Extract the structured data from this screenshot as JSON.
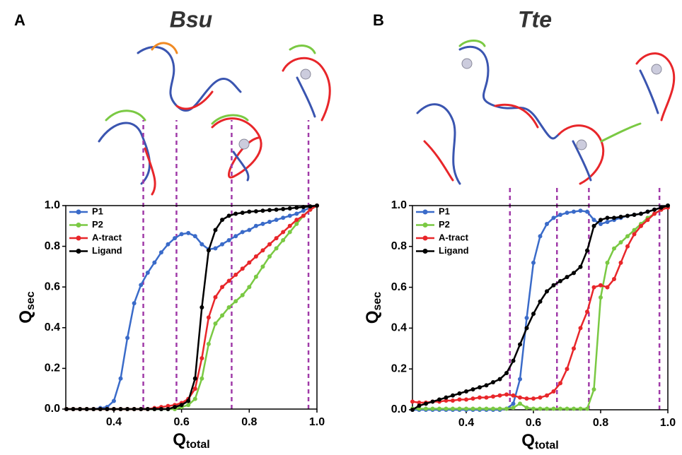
{
  "chart_data": [
    {
      "type": "line",
      "panel": "A",
      "title": "Bsu",
      "xlabel": "Q",
      "xlabel_sub": "total",
      "ylabel": "Q",
      "ylabel_sub": "sec",
      "xlim": [
        0.258,
        1.0
      ],
      "ylim": [
        0,
        1.0
      ],
      "xticks": [
        0.4,
        0.6,
        0.8,
        {
          "value": 1,
          "label": "1.0"
        }
      ],
      "yticks": [
        {
          "value": 0,
          "label": "0.0"
        },
        0.2,
        0.4,
        0.6,
        0.8,
        {
          "value": 1,
          "label": "1.0"
        }
      ],
      "legend": "upper left",
      "marker_color": "#a03aa8",
      "markers": [
        0.487,
        0.585,
        0.748,
        0.975
      ],
      "x": [
        0.26,
        0.28,
        0.3,
        0.32,
        0.34,
        0.36,
        0.38,
        0.4,
        0.42,
        0.44,
        0.46,
        0.48,
        0.5,
        0.52,
        0.54,
        0.56,
        0.58,
        0.6,
        0.62,
        0.64,
        0.66,
        0.68,
        0.7,
        0.72,
        0.74,
        0.76,
        0.78,
        0.8,
        0.82,
        0.84,
        0.86,
        0.88,
        0.9,
        0.92,
        0.94,
        0.96,
        0.98,
        1.0
      ],
      "series": [
        {
          "name": "P1",
          "color": "#3a6bc9",
          "values": [
            0,
            0,
            0,
            0,
            0,
            0.005,
            0.01,
            0.04,
            0.15,
            0.35,
            0.52,
            0.61,
            0.67,
            0.72,
            0.77,
            0.81,
            0.84,
            0.86,
            0.865,
            0.85,
            0.81,
            0.785,
            0.79,
            0.81,
            0.83,
            0.85,
            0.87,
            0.88,
            0.9,
            0.91,
            0.92,
            0.93,
            0.94,
            0.95,
            0.96,
            0.975,
            0.99,
            1.0
          ]
        },
        {
          "name": "P2",
          "color": "#7ac943",
          "values": [
            0,
            0,
            0,
            0,
            0,
            0,
            0,
            0,
            0,
            0,
            0,
            0,
            0,
            0,
            0,
            0,
            0,
            0.01,
            0.02,
            0.05,
            0.15,
            0.32,
            0.42,
            0.46,
            0.5,
            0.53,
            0.56,
            0.6,
            0.65,
            0.7,
            0.75,
            0.79,
            0.83,
            0.87,
            0.91,
            0.95,
            0.98,
            1.0
          ]
        },
        {
          "name": "A-tract",
          "color": "#e8262a",
          "values": [
            0,
            0,
            0,
            0,
            0,
            0,
            0,
            0,
            0,
            0,
            0,
            0,
            0,
            0.005,
            0.01,
            0.015,
            0.02,
            0.03,
            0.05,
            0.1,
            0.25,
            0.45,
            0.55,
            0.6,
            0.63,
            0.66,
            0.69,
            0.72,
            0.75,
            0.78,
            0.81,
            0.84,
            0.87,
            0.9,
            0.93,
            0.95,
            0.98,
            1.0
          ]
        },
        {
          "name": "Ligand",
          "color": "#000000",
          "values": [
            0,
            0,
            0,
            0,
            0,
            0,
            0,
            0,
            0,
            0,
            0,
            0,
            0,
            0,
            0,
            0,
            0.01,
            0.02,
            0.04,
            0.15,
            0.5,
            0.78,
            0.88,
            0.93,
            0.95,
            0.96,
            0.965,
            0.97,
            0.972,
            0.975,
            0.978,
            0.98,
            0.983,
            0.986,
            0.99,
            0.993,
            0.996,
            1.0
          ]
        }
      ]
    },
    {
      "type": "line",
      "panel": "B",
      "title": "Tte",
      "xlabel": "Q",
      "xlabel_sub": "total",
      "ylabel": "Q",
      "ylabel_sub": "sec",
      "xlim": [
        0.24,
        1.0
      ],
      "ylim": [
        0,
        1.0
      ],
      "xticks": [
        0.4,
        0.6,
        0.8,
        {
          "value": 1,
          "label": "1.0"
        }
      ],
      "yticks": [
        {
          "value": 0,
          "label": "0.0"
        },
        0.2,
        0.4,
        0.6,
        0.8,
        {
          "value": 1,
          "label": "1.0"
        }
      ],
      "legend": "upper left",
      "marker_color": "#a03aa8",
      "markers": [
        0.53,
        0.67,
        0.765,
        0.975
      ],
      "x": [
        0.24,
        0.26,
        0.28,
        0.3,
        0.32,
        0.34,
        0.36,
        0.38,
        0.4,
        0.42,
        0.44,
        0.46,
        0.48,
        0.5,
        0.52,
        0.54,
        0.56,
        0.58,
        0.6,
        0.62,
        0.64,
        0.66,
        0.68,
        0.7,
        0.72,
        0.74,
        0.76,
        0.78,
        0.8,
        0.82,
        0.84,
        0.86,
        0.88,
        0.9,
        0.92,
        0.94,
        0.96,
        0.98,
        1.0
      ],
      "series": [
        {
          "name": "P1",
          "color": "#3a6bc9",
          "values": [
            0,
            0,
            0,
            0,
            0,
            0,
            0,
            0,
            0,
            0,
            0,
            0,
            0,
            0,
            0.005,
            0.03,
            0.15,
            0.45,
            0.72,
            0.85,
            0.91,
            0.94,
            0.955,
            0.965,
            0.97,
            0.975,
            0.97,
            0.93,
            0.91,
            0.92,
            0.93,
            0.94,
            0.95,
            0.955,
            0.96,
            0.97,
            0.98,
            0.99,
            1.0
          ]
        },
        {
          "name": "P2",
          "color": "#7ac943",
          "values": [
            0.005,
            0.005,
            0.005,
            0.005,
            0.005,
            0.005,
            0.005,
            0.005,
            0.005,
            0.005,
            0.005,
            0.005,
            0.005,
            0.005,
            0.005,
            0.01,
            0.03,
            0.01,
            0.005,
            0.005,
            0.005,
            0.005,
            0.005,
            0.005,
            0.005,
            0.005,
            0.005,
            0.1,
            0.55,
            0.72,
            0.79,
            0.82,
            0.85,
            0.88,
            0.91,
            0.94,
            0.96,
            0.98,
            1.0
          ]
        },
        {
          "name": "A-tract",
          "color": "#e8262a",
          "values": [
            0.04,
            0.035,
            0.035,
            0.04,
            0.04,
            0.045,
            0.045,
            0.05,
            0.05,
            0.055,
            0.06,
            0.06,
            0.065,
            0.07,
            0.075,
            0.07,
            0.06,
            0.055,
            0.055,
            0.06,
            0.07,
            0.09,
            0.13,
            0.2,
            0.3,
            0.4,
            0.48,
            0.6,
            0.61,
            0.6,
            0.64,
            0.72,
            0.8,
            0.86,
            0.9,
            0.93,
            0.96,
            0.98,
            0.99
          ]
        },
        {
          "name": "Ligand",
          "color": "#000000",
          "values": [
            0,
            0.02,
            0.03,
            0.04,
            0.05,
            0.06,
            0.07,
            0.08,
            0.09,
            0.1,
            0.11,
            0.12,
            0.135,
            0.15,
            0.18,
            0.24,
            0.32,
            0.4,
            0.47,
            0.53,
            0.58,
            0.61,
            0.63,
            0.65,
            0.67,
            0.7,
            0.78,
            0.9,
            0.93,
            0.94,
            0.94,
            0.945,
            0.95,
            0.955,
            0.96,
            0.97,
            0.98,
            0.99,
            1.0
          ]
        }
      ]
    }
  ]
}
